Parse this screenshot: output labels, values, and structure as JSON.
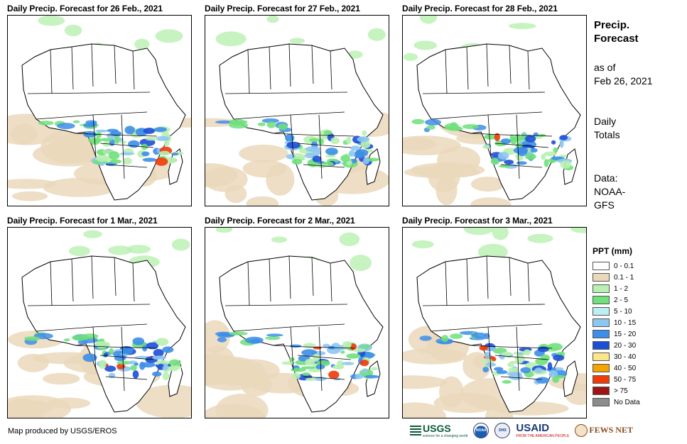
{
  "panels": [
    {
      "title": "Daily Precip. Forecast for 26 Feb., 2021"
    },
    {
      "title": "Daily Precip. Forecast for 27 Feb., 2021"
    },
    {
      "title": "Daily Precip. Forecast for 28 Feb., 2021"
    },
    {
      "title": "Daily Precip. Forecast for 1 Mar., 2021"
    },
    {
      "title": "Daily Precip. Forecast for 2 Mar., 2021"
    },
    {
      "title": "Daily Precip. Forecast for 3 Mar., 2021"
    }
  ],
  "sidebar": {
    "title_line1": "Precip.",
    "title_line2": "Forecast",
    "asof_line1": "as of",
    "asof_line2": "Feb 26, 2021",
    "totals_line1": "Daily",
    "totals_line2": "Totals",
    "data_line1": "Data:",
    "data_line2": "NOAA-",
    "data_line3": "GFS"
  },
  "legend": {
    "title": "PPT (mm)",
    "items": [
      {
        "label": "0 - 0.1",
        "color": "#ffffff"
      },
      {
        "label": "0.1 - 1",
        "color": "#ead8bb"
      },
      {
        "label": "1 - 2",
        "color": "#b8f0b0"
      },
      {
        "label": "2 - 5",
        "color": "#6fe07a"
      },
      {
        "label": "5 - 10",
        "color": "#bdeef3"
      },
      {
        "label": "10 - 15",
        "color": "#8ec6f2"
      },
      {
        "label": "15 - 20",
        "color": "#3d8ee8"
      },
      {
        "label": "20 - 30",
        "color": "#1d4fd6"
      },
      {
        "label": "30 - 40",
        "color": "#fbe68a"
      },
      {
        "label": "40 - 50",
        "color": "#f5a300"
      },
      {
        "label": "50 - 75",
        "color": "#f03a0a"
      },
      {
        "label": "> 75",
        "color": "#9e1414"
      },
      {
        "label": "No Data",
        "color": "#8c8c8c"
      }
    ]
  },
  "footer": {
    "credit": "Map produced by USGS/EROS",
    "logo_usgs": "USGS",
    "logo_usgs_tag": "science for a changing world",
    "logo_noaa": "NOAA",
    "logo_dhs": "DHS",
    "logo_usaid": "USAID",
    "logo_usaid_tag": "FROM THE AMERICAN PEOPLE",
    "logo_fews": "FEWS NET"
  }
}
